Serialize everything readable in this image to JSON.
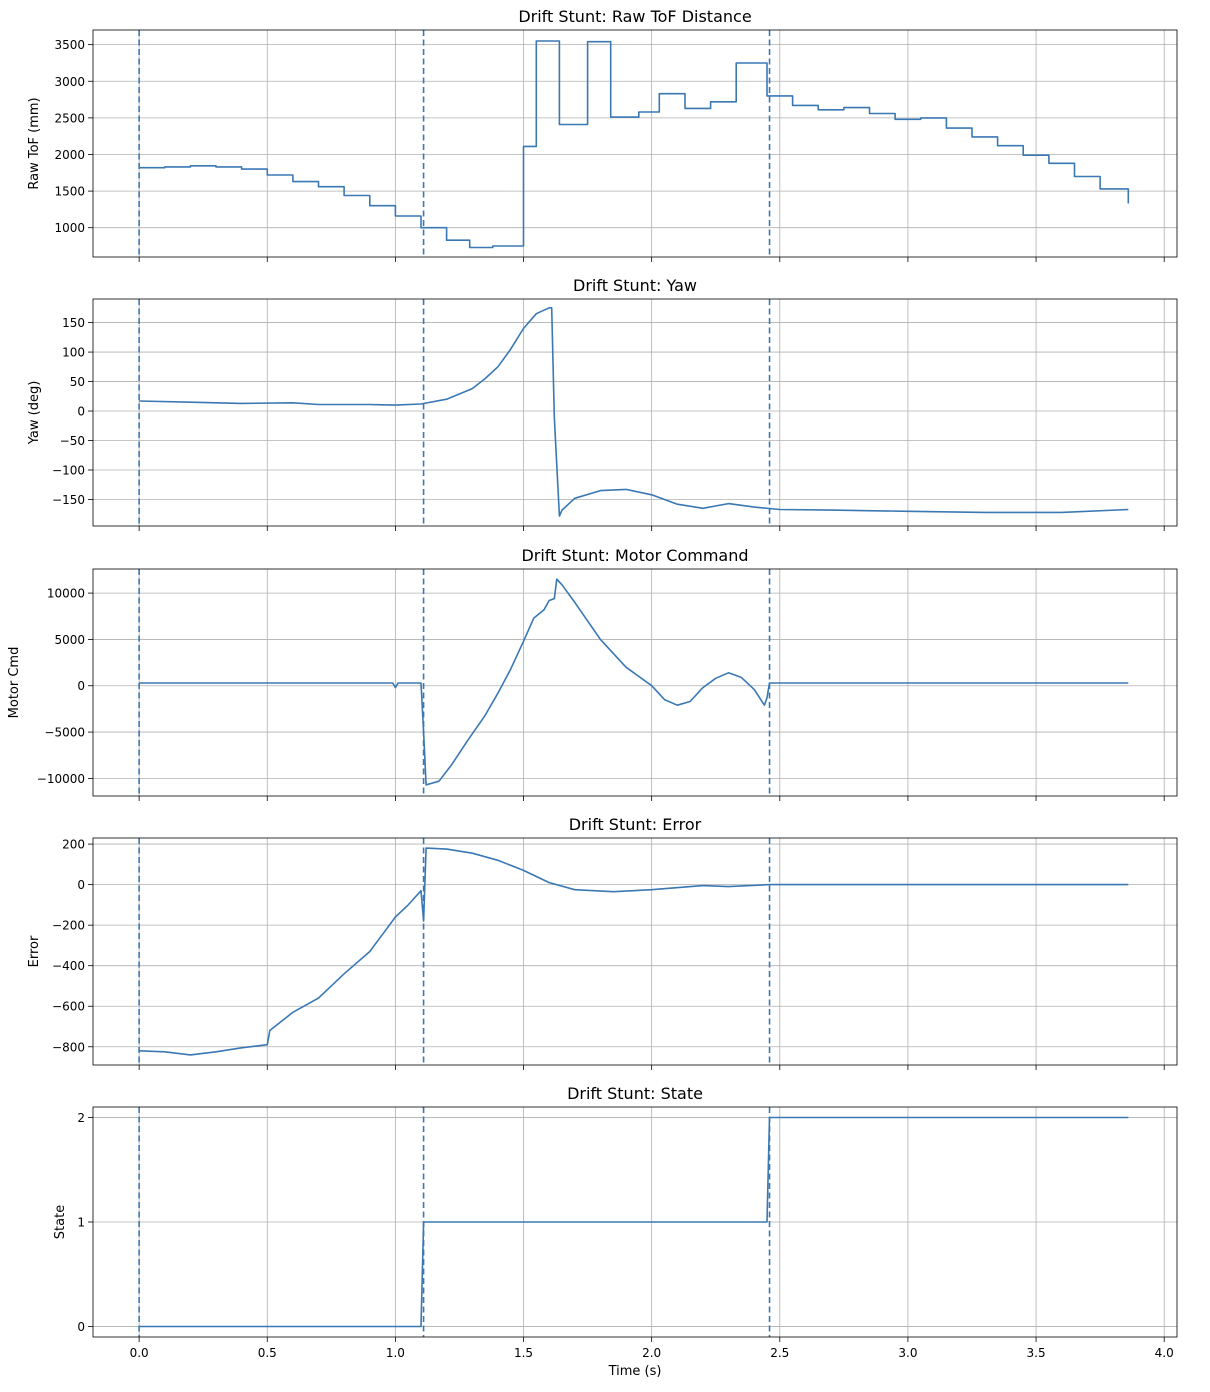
{
  "chart_data": [
    {
      "type": "line",
      "title": "Drift Stunt: Raw ToF Distance",
      "ylabel": "Raw ToF (mm)",
      "xlabel": "",
      "xlim": [
        -0.18,
        4.05
      ],
      "ylim": [
        600,
        3700
      ],
      "xticks": [
        0.0,
        0.5,
        1.0,
        1.5,
        2.0,
        2.5,
        3.0,
        3.5,
        4.0
      ],
      "yticks": [
        1000,
        1500,
        2000,
        2500,
        3000,
        3500
      ],
      "xtick_labels_visible": false,
      "grid": true,
      "vlines": [
        0.0,
        1.11,
        2.46
      ],
      "color": "#3a78b4",
      "step": true,
      "x": [
        0.0,
        0.1,
        0.2,
        0.3,
        0.4,
        0.5,
        0.6,
        0.7,
        0.8,
        0.9,
        1.0,
        1.1,
        1.2,
        1.29,
        1.38,
        1.5,
        1.55,
        1.64,
        1.75,
        1.84,
        1.95,
        2.03,
        2.13,
        2.23,
        2.33,
        2.45,
        2.55,
        2.65,
        2.75,
        2.85,
        2.95,
        3.05,
        3.15,
        3.25,
        3.35,
        3.45,
        3.55,
        3.65,
        3.75,
        3.86
      ],
      "values": [
        1820,
        1830,
        1845,
        1830,
        1800,
        1720,
        1630,
        1560,
        1440,
        1300,
        1160,
        1000,
        830,
        730,
        750,
        2110,
        3550,
        2410,
        3540,
        2510,
        2580,
        2830,
        2630,
        2720,
        3250,
        2800,
        2670,
        2610,
        2640,
        2560,
        2480,
        2500,
        2360,
        2240,
        2120,
        1990,
        1880,
        1700,
        1530,
        1330
      ]
    },
    {
      "type": "line",
      "title": "Drift Stunt: Yaw",
      "ylabel": "Yaw (deg)",
      "xlabel": "",
      "xlim": [
        -0.18,
        4.05
      ],
      "ylim": [
        -195,
        190
      ],
      "xticks": [
        0.0,
        0.5,
        1.0,
        1.5,
        2.0,
        2.5,
        3.0,
        3.5,
        4.0
      ],
      "yticks": [
        -150,
        -100,
        -50,
        0,
        50,
        100,
        150
      ],
      "xtick_labels_visible": false,
      "grid": true,
      "vlines": [
        0.0,
        1.11,
        2.46
      ],
      "color": "#3a78b4",
      "x": [
        0.0,
        0.2,
        0.4,
        0.6,
        0.7,
        0.9,
        1.0,
        1.1,
        1.2,
        1.3,
        1.35,
        1.4,
        1.45,
        1.5,
        1.55,
        1.6,
        1.61,
        1.62,
        1.64,
        1.65,
        1.7,
        1.8,
        1.9,
        2.0,
        2.1,
        2.2,
        2.3,
        2.4,
        2.5,
        2.7,
        3.0,
        3.3,
        3.6,
        3.86
      ],
      "values": [
        17,
        15,
        13,
        14,
        11,
        11,
        10,
        12,
        20,
        38,
        55,
        75,
        105,
        140,
        165,
        175,
        175,
        -10,
        -178,
        -168,
        -148,
        -135,
        -133,
        -142,
        -158,
        -165,
        -157,
        -163,
        -167,
        -168,
        -170,
        -172,
        -172,
        -167
      ]
    },
    {
      "type": "line",
      "title": "Drift Stunt: Motor Command",
      "ylabel": "Motor Cmd",
      "xlabel": "",
      "xlim": [
        -0.18,
        4.05
      ],
      "ylim": [
        -11900,
        12600
      ],
      "xticks": [
        0.0,
        0.5,
        1.0,
        1.5,
        2.0,
        2.5,
        3.0,
        3.5,
        4.0
      ],
      "yticks": [
        -10000,
        -5000,
        0,
        5000,
        10000
      ],
      "xtick_labels_visible": false,
      "grid": true,
      "vlines": [
        0.0,
        1.11,
        2.46
      ],
      "color": "#3a78b4",
      "x": [
        0.0,
        0.99,
        1.0,
        1.01,
        1.1,
        1.11,
        1.12,
        1.17,
        1.22,
        1.28,
        1.35,
        1.4,
        1.45,
        1.5,
        1.54,
        1.58,
        1.6,
        1.62,
        1.63,
        1.65,
        1.7,
        1.8,
        1.9,
        2.0,
        2.05,
        2.1,
        2.15,
        2.2,
        2.25,
        2.3,
        2.35,
        2.4,
        2.44,
        2.45,
        2.46,
        3.0,
        3.86
      ],
      "values": [
        300,
        300,
        -200,
        300,
        300,
        -5000,
        -10700,
        -10300,
        -8500,
        -6000,
        -3200,
        -800,
        1800,
        4800,
        7300,
        8200,
        9200,
        9400,
        11500,
        10900,
        9000,
        5000,
        2000,
        0,
        -1500,
        -2100,
        -1700,
        -200,
        800,
        1400,
        900,
        -400,
        -2100,
        -1300,
        300,
        300,
        300
      ]
    },
    {
      "type": "line",
      "title": "Drift Stunt: Error",
      "ylabel": "Error",
      "xlabel": "",
      "xlim": [
        -0.18,
        4.05
      ],
      "ylim": [
        -890,
        230
      ],
      "xticks": [
        0.0,
        0.5,
        1.0,
        1.5,
        2.0,
        2.5,
        3.0,
        3.5,
        4.0
      ],
      "yticks": [
        -800,
        -600,
        -400,
        -200,
        0,
        200
      ],
      "xtick_labels_visible": false,
      "grid": true,
      "vlines": [
        0.0,
        1.11,
        2.46
      ],
      "color": "#3a78b4",
      "x": [
        0.0,
        0.1,
        0.2,
        0.3,
        0.4,
        0.5,
        0.51,
        0.6,
        0.7,
        0.8,
        0.9,
        1.0,
        1.05,
        1.1,
        1.11,
        1.12,
        1.2,
        1.3,
        1.4,
        1.5,
        1.6,
        1.7,
        1.85,
        2.0,
        2.2,
        2.3,
        2.46,
        3.0,
        3.86
      ],
      "values": [
        -820,
        -825,
        -840,
        -825,
        -805,
        -790,
        -720,
        -630,
        -560,
        -440,
        -330,
        -160,
        -100,
        -30,
        -180,
        180,
        175,
        155,
        120,
        70,
        10,
        -25,
        -35,
        -25,
        -5,
        -10,
        0,
        0,
        0
      ]
    },
    {
      "type": "line",
      "title": "Drift Stunt: State",
      "ylabel": "State",
      "xlabel": "Time (s)",
      "xlim": [
        -0.18,
        4.05
      ],
      "ylim": [
        -0.1,
        2.1
      ],
      "xticks": [
        0.0,
        0.5,
        1.0,
        1.5,
        2.0,
        2.5,
        3.0,
        3.5,
        4.0
      ],
      "xtick_labels": [
        "0.0",
        "0.5",
        "1.0",
        "1.5",
        "2.0",
        "2.5",
        "3.0",
        "3.5",
        "4.0"
      ],
      "yticks": [
        0,
        1,
        2
      ],
      "xtick_labels_visible": true,
      "grid": true,
      "vlines": [
        0.0,
        1.11,
        2.46
      ],
      "color": "#3a78b4",
      "x": [
        0.0,
        1.1,
        1.11,
        2.45,
        2.46,
        3.86
      ],
      "values": [
        0,
        0,
        1,
        1,
        2,
        2
      ]
    }
  ]
}
